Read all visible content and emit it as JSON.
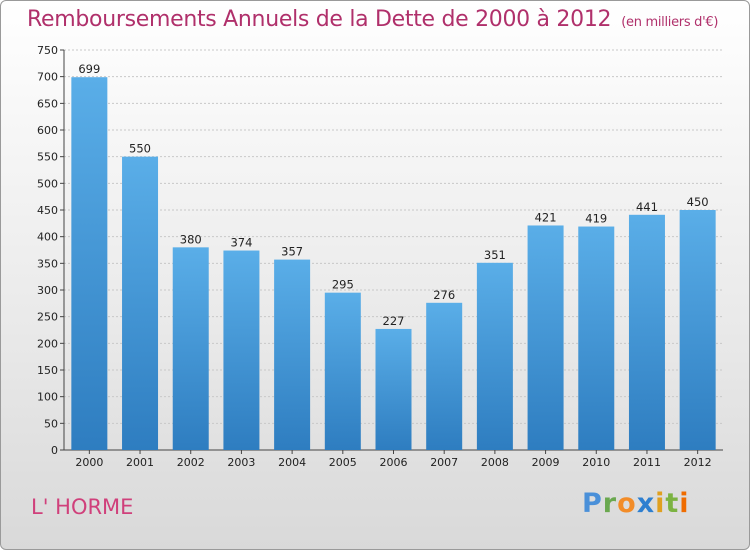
{
  "title": {
    "main": "Remboursements Annuels de la Dette de 2000 à 2012",
    "unit": "(en milliers d'€)"
  },
  "town": "L' HORME",
  "logo": {
    "text": "Proxiti",
    "letters": [
      "P",
      "r",
      "o",
      "x",
      "i",
      "t",
      "i"
    ]
  },
  "colors": {
    "bar_top": "#5aaee8",
    "bar_bottom": "#2e7dc0",
    "title": "#b0306b",
    "town": "#d0407b"
  },
  "chart_data": {
    "type": "bar",
    "title": "Remboursements Annuels de la Dette de 2000 à 2012",
    "xlabel": "",
    "ylabel": "",
    "categories": [
      "2000",
      "2001",
      "2002",
      "2003",
      "2004",
      "2005",
      "2006",
      "2007",
      "2008",
      "2009",
      "2010",
      "2011",
      "2012"
    ],
    "values": [
      699,
      550,
      380,
      374,
      357,
      295,
      227,
      276,
      351,
      421,
      419,
      441,
      450
    ],
    "ylim": [
      0,
      750
    ],
    "yticks": [
      0,
      50,
      100,
      150,
      200,
      250,
      300,
      350,
      400,
      450,
      500,
      550,
      600,
      650,
      700,
      750
    ],
    "grid": true
  }
}
